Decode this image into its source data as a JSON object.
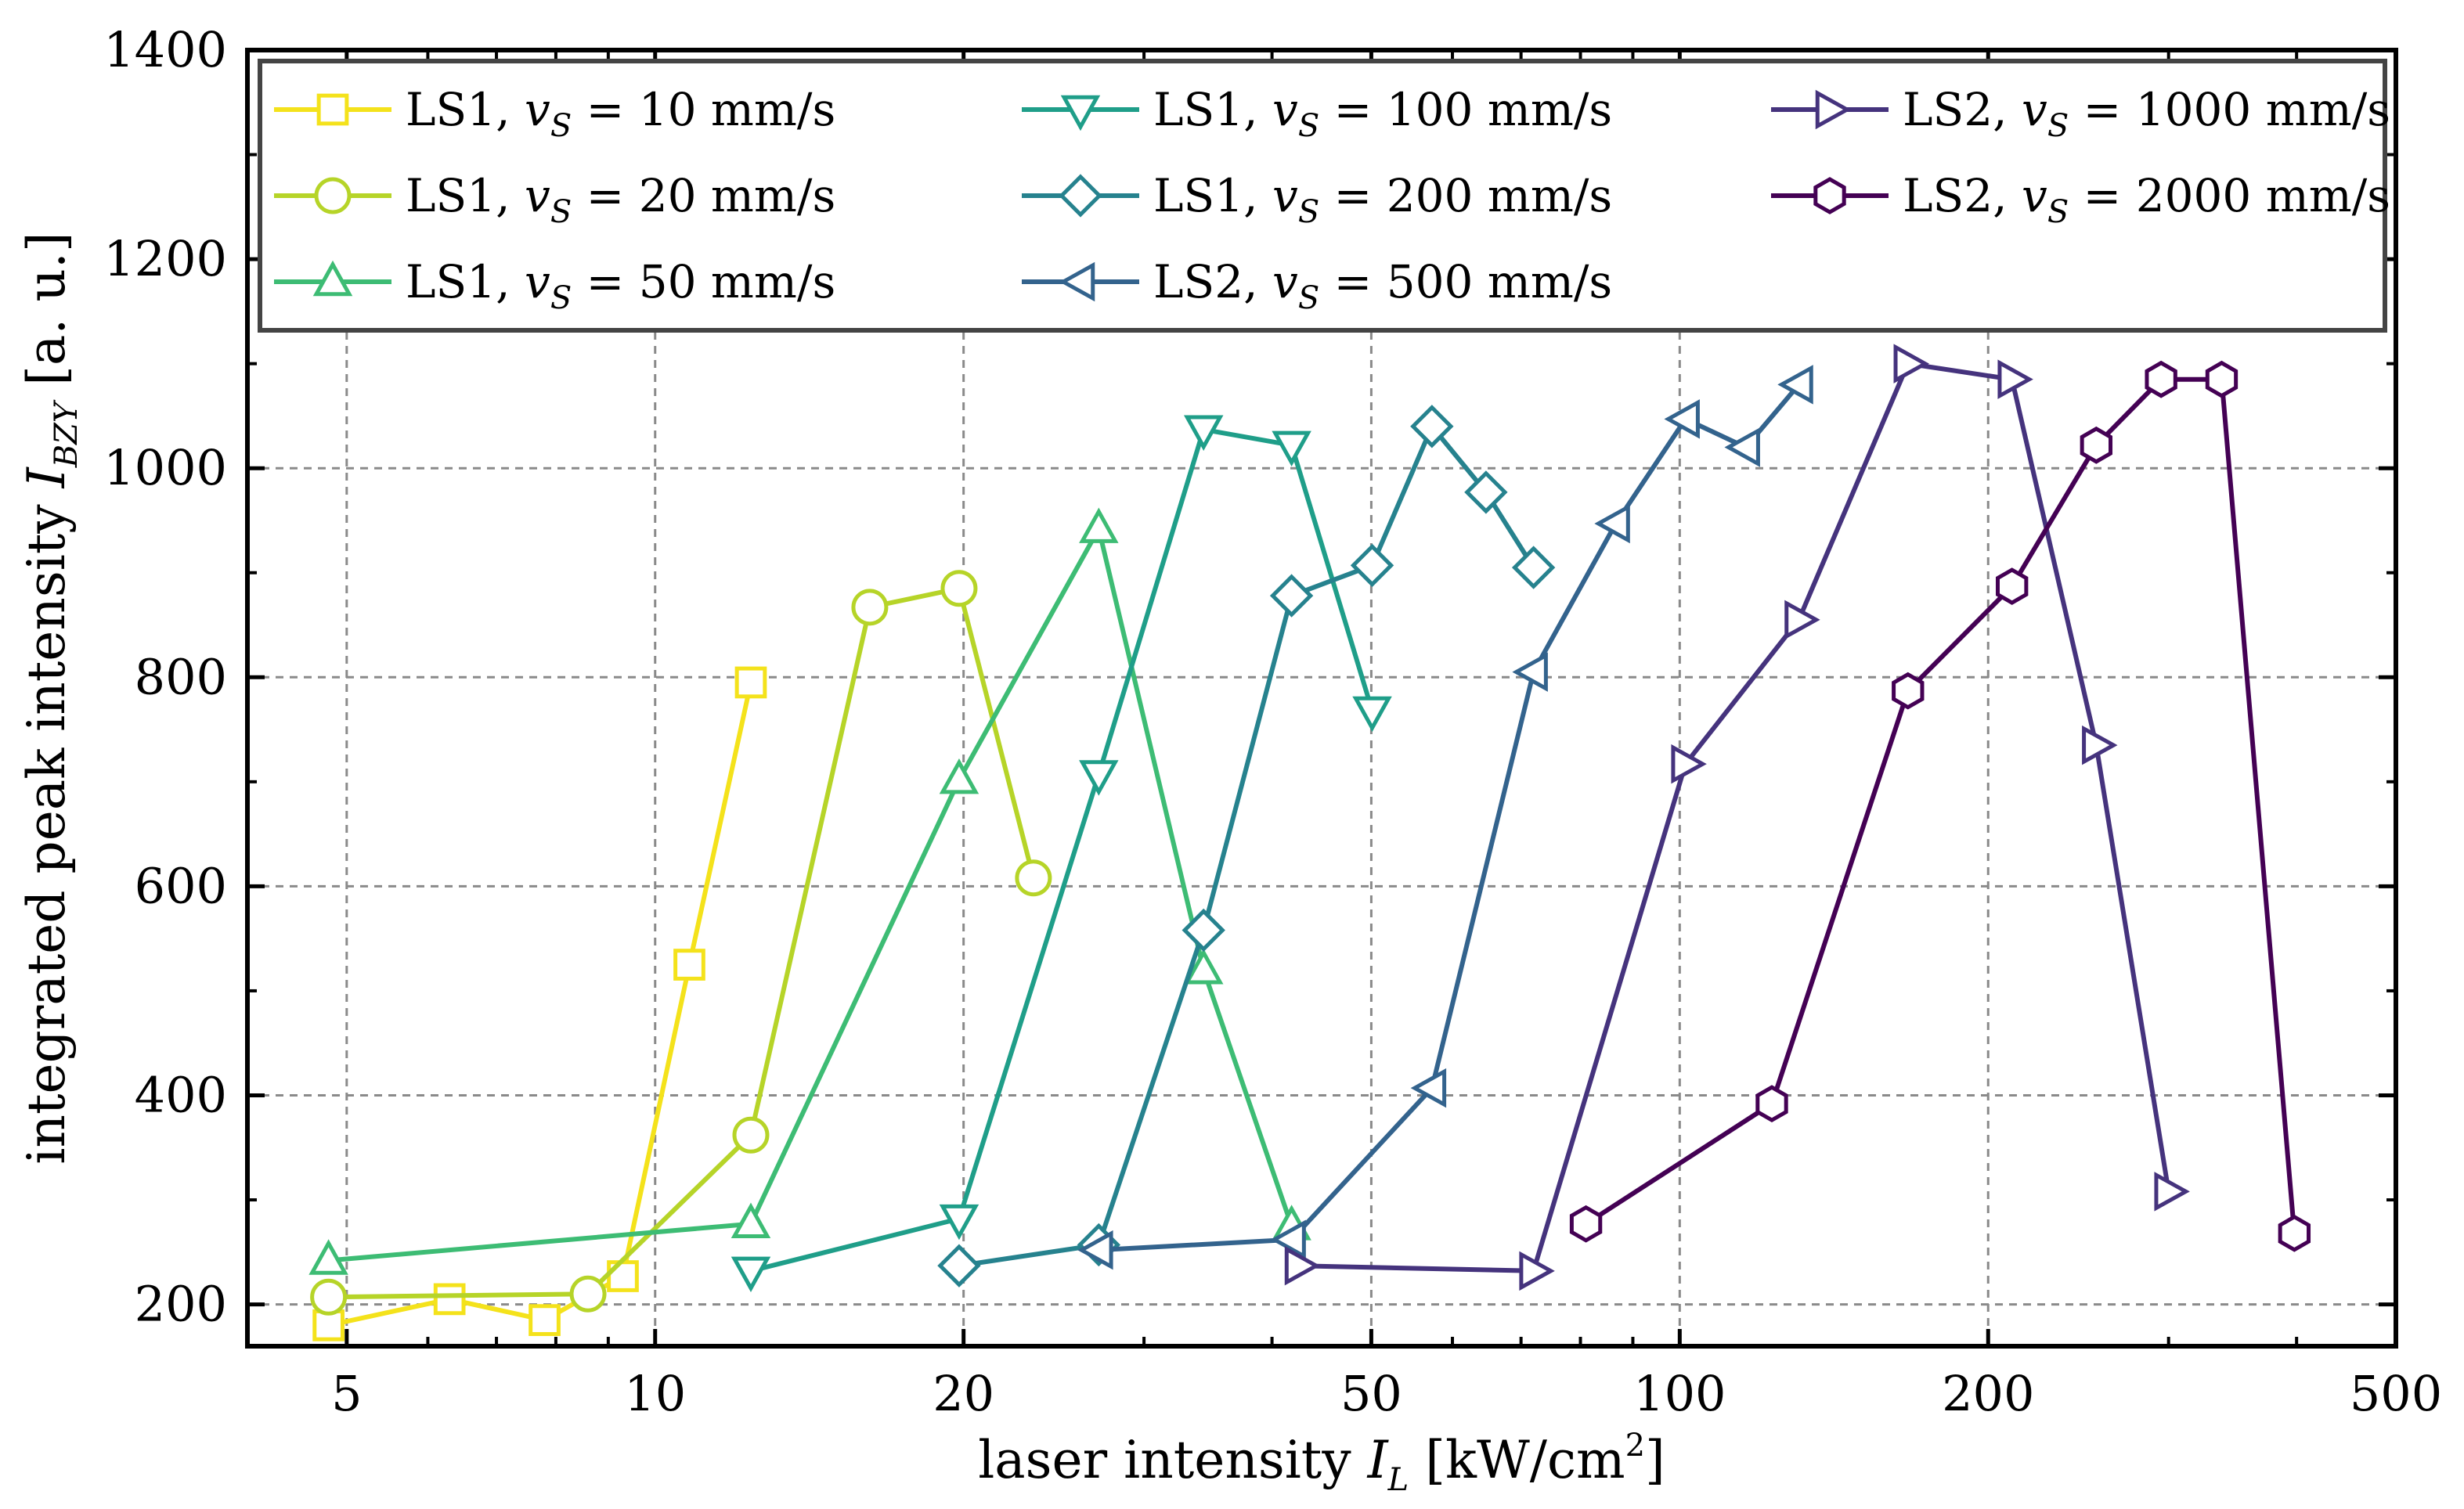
{
  "chart_data": {
    "type": "line",
    "title": "",
    "xlabel": {
      "prefix": "laser intensity ",
      "symbol": "I",
      "subscript": "L",
      "unit_open": " [kW/cm",
      "unit_sup": "2",
      "unit_close": "]"
    },
    "ylabel": {
      "prefix": "integrated peak intensity ",
      "symbol": "I",
      "subscript": "BZY",
      "suffix": " [a. u.]"
    },
    "x_scale": "log",
    "xlim": [
      4,
      500
    ],
    "ylim": [
      160,
      1400
    ],
    "x_ticks": [
      5,
      10,
      20,
      50,
      100,
      200,
      500
    ],
    "x_tick_labels": [
      "5",
      "10",
      "20",
      "50",
      "100",
      "200",
      "500"
    ],
    "y_ticks": [
      200,
      400,
      600,
      800,
      1000,
      1200,
      1400
    ],
    "y_tick_labels": [
      "200",
      "400",
      "600",
      "800",
      "1000",
      "1200",
      "1400"
    ],
    "grid": true,
    "legend_position": "top",
    "series": [
      {
        "laser": "LS1",
        "speed": "10 mm/s",
        "marker": "square",
        "color": "#f4e21b",
        "x": [
          4.8,
          6.3,
          7.8,
          9.3,
          10.8,
          12.4
        ],
        "y": [
          180,
          205,
          185,
          227,
          525,
          795
        ]
      },
      {
        "laser": "LS1",
        "speed": "20 mm/s",
        "marker": "circle",
        "color": "#b6d428",
        "x": [
          4.8,
          8.6,
          12.4,
          16.2,
          19.8,
          23.4
        ],
        "y": [
          207,
          210,
          362,
          867,
          885,
          608
        ]
      },
      {
        "laser": "LS1",
        "speed": "50 mm/s",
        "marker": "triangle-up",
        "color": "#3dbc74",
        "x": [
          4.8,
          12.4,
          19.8,
          27.1,
          34.3,
          41.8
        ],
        "y": [
          242,
          277,
          702,
          942,
          520,
          275
        ]
      },
      {
        "laser": "LS1",
        "speed": "100 mm/s",
        "marker": "triangle-down",
        "color": "#1f9e89",
        "x": [
          12.4,
          19.8,
          27.1,
          34.3,
          41.8,
          50.1
        ],
        "y": [
          232,
          282,
          707,
          1037,
          1022,
          768
        ]
      },
      {
        "laser": "LS1",
        "speed": "200 mm/s",
        "marker": "diamond",
        "color": "#26828e",
        "x": [
          19.8,
          27.1,
          34.3,
          41.8,
          50.1,
          57.3,
          64.7,
          72.0
        ],
        "y": [
          237,
          257,
          558,
          878,
          907,
          1040,
          977,
          905
        ]
      },
      {
        "laser": "LS2",
        "speed": "500 mm/s",
        "marker": "triangle-left",
        "color": "#33638d",
        "x": [
          27.1,
          41.8,
          57.3,
          72.0,
          86.6,
          101.3,
          116.0,
          130.7
        ],
        "y": [
          252,
          262,
          407,
          805,
          947,
          1047,
          1020,
          1080
        ]
      },
      {
        "laser": "LS2",
        "speed": "1000 mm/s",
        "marker": "triangle-right",
        "color": "#45337d",
        "x": [
          42.5,
          72.0,
          101.3,
          130.7,
          167.0,
          211.0,
          255.0,
          300.0
        ],
        "y": [
          237,
          232,
          717,
          855,
          1100,
          1085,
          735,
          308
        ]
      },
      {
        "laser": "LS2",
        "speed": "2000 mm/s",
        "marker": "hexagon",
        "color": "#440154",
        "x": [
          81.0,
          123.0,
          167.0,
          211.0,
          255.0,
          295.0,
          338.0,
          398.0
        ],
        "y": [
          277,
          392,
          787,
          887,
          1022,
          1085,
          1085,
          268
        ]
      }
    ],
    "legend_label_template": {
      "sep": ", ",
      "symbol": "v",
      "subscript": "S",
      "eq": " = "
    }
  }
}
